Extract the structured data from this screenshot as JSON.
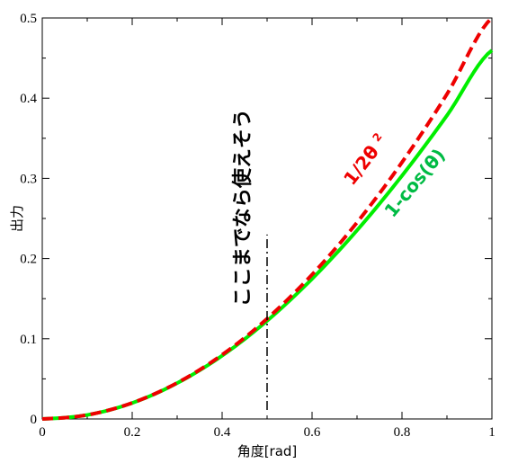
{
  "chart_data": {
    "type": "line",
    "xlabel": "角度[rad]",
    "ylabel": "出力",
    "xlim": [
      0,
      1
    ],
    "ylim": [
      0,
      0.5
    ],
    "x_ticks": [
      {
        "value": 0,
        "label": "0"
      },
      {
        "value": 0.2,
        "label": "0.2"
      },
      {
        "value": 0.4,
        "label": "0.4"
      },
      {
        "value": 0.6,
        "label": "0.6"
      },
      {
        "value": 0.8,
        "label": "0.8"
      },
      {
        "value": 1,
        "label": "1"
      }
    ],
    "y_ticks": [
      {
        "value": 0,
        "label": "0"
      },
      {
        "value": 0.1,
        "label": "0.1"
      },
      {
        "value": 0.2,
        "label": "0.2"
      },
      {
        "value": 0.3,
        "label": "0.3"
      },
      {
        "value": 0.4,
        "label": "0.4"
      },
      {
        "value": 0.5,
        "label": "0.5"
      }
    ],
    "grid": false,
    "series": [
      {
        "color": "#00ee00",
        "style": "solid",
        "x": [
          0,
          0.1,
          0.2,
          0.3,
          0.4,
          0.5,
          0.6,
          0.7,
          0.8,
          0.9,
          1.0
        ],
        "y": [
          0,
          0.005,
          0.0199,
          0.0447,
          0.0789,
          0.1224,
          0.1747,
          0.2352,
          0.3033,
          0.3784,
          0.4597
        ]
      },
      {
        "color": "#ee0000",
        "style": "dashed",
        "x": [
          0,
          0.1,
          0.2,
          0.3,
          0.4,
          0.5,
          0.6,
          0.7,
          0.8,
          0.9,
          1.0
        ],
        "y": [
          0,
          0.005,
          0.02,
          0.045,
          0.08,
          0.125,
          0.18,
          0.245,
          0.32,
          0.405,
          0.5
        ]
      }
    ],
    "vertical_marker": {
      "x": 0.5,
      "y_range": [
        0,
        0.23
      ],
      "label": "ここまでなら使えそう"
    },
    "annotations": [
      {
        "text_main": "1/2θ",
        "superscript": "2",
        "color": "#ee0000",
        "x": 0.69,
        "y": 0.29
      },
      {
        "text": "1-cos(θ)",
        "color": "#00bb44",
        "x": 0.78,
        "y": 0.25
      }
    ]
  }
}
